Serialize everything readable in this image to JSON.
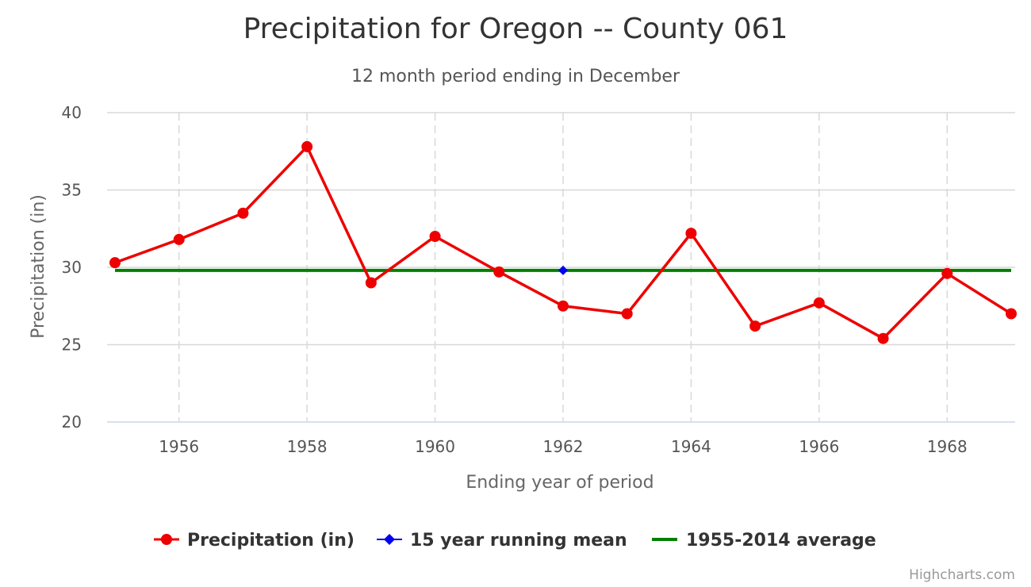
{
  "chart_data": {
    "type": "line",
    "title": "Precipitation for Oregon -- County 061",
    "subtitle": "12 month period ending in December",
    "xlabel": "Ending year of period",
    "ylabel": "Precipitation (in)",
    "xlim": [
      1955,
      1969
    ],
    "ylim": [
      20,
      40
    ],
    "x_ticks": [
      1956,
      1958,
      1960,
      1962,
      1964,
      1966,
      1968
    ],
    "y_ticks": [
      20,
      25,
      30,
      35,
      40
    ],
    "grid": "on",
    "legend_position": "bottom",
    "series": [
      {
        "name": "Precipitation (in)",
        "color": "#ee0000",
        "marker": "circle",
        "x": [
          1955,
          1956,
          1957,
          1958,
          1959,
          1960,
          1961,
          1962,
          1963,
          1964,
          1965,
          1966,
          1967,
          1968,
          1969
        ],
        "values": [
          30.3,
          31.8,
          33.5,
          37.8,
          29.0,
          32.0,
          29.7,
          27.5,
          27.0,
          32.2,
          26.2,
          27.7,
          25.4,
          29.6,
          27.0
        ]
      },
      {
        "name": "15 year running mean",
        "color": "#0000ee",
        "marker": "diamond",
        "x": [
          1962
        ],
        "values": [
          29.8
        ]
      },
      {
        "name": "1955-2014 average",
        "color": "#008000",
        "marker": "none",
        "x": [
          1955,
          1969
        ],
        "values": [
          29.8,
          29.8
        ]
      }
    ],
    "credits": "Highcharts.com"
  }
}
